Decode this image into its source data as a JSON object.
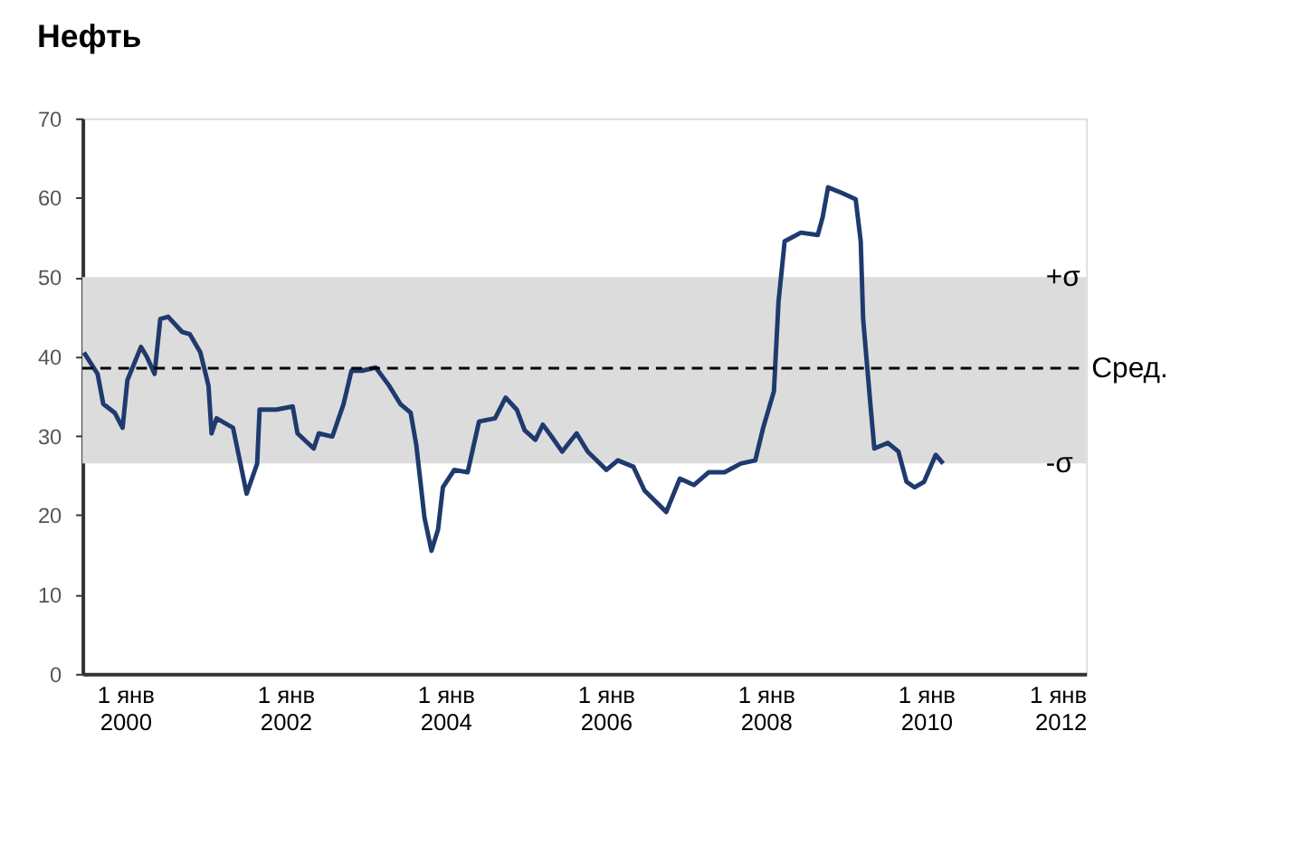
{
  "chart_data": {
    "type": "line",
    "title": "Нефть",
    "x": [
      "1999-06-27",
      "1999-08-28",
      "1999-09-23",
      "1999-11-14",
      "1999-12-20",
      "2000-01-11",
      "2000-03-13",
      "2000-04-08",
      "2000-05-14",
      "2000-06-09",
      "2000-07-15",
      "2000-09-16",
      "2000-10-22",
      "2000-12-09",
      "2001-01-15",
      "2001-01-29",
      "2001-02-21",
      "2001-05-07",
      "2001-07-08",
      "2001-08-25",
      "2001-09-05",
      "2001-11-21",
      "2002-02-03",
      "2002-02-25",
      "2002-05-10",
      "2002-06-02",
      "2002-08-03",
      "2002-09-23",
      "2002-10-29",
      "2002-12-16",
      "2003-02-17",
      "2003-04-19",
      "2003-06-09",
      "2003-07-26",
      "2003-08-21",
      "2003-09-27",
      "2003-10-29",
      "2003-11-28",
      "2003-12-20",
      "2004-02-10",
      "2004-04-11",
      "2004-06-02",
      "2004-08-14",
      "2004-10-01",
      "2004-11-21",
      "2004-12-27",
      "2005-02-14",
      "2005-03-20",
      "2005-04-29",
      "2005-06-16",
      "2005-08-21",
      "2005-10-11",
      "2006-01-04",
      "2006-02-25",
      "2006-05-07",
      "2006-06-27",
      "2006-10-04",
      "2006-12-05",
      "2007-02-07",
      "2007-04-15",
      "2007-06-27",
      "2007-09-09",
      "2007-11-14",
      "2007-12-20",
      "2008-02-07",
      "2008-02-28",
      "2008-03-27",
      "2008-06-09",
      "2008-08-25",
      "2008-09-16",
      "2008-10-11",
      "2008-12-13",
      "2009-02-14",
      "2009-03-09",
      "2009-03-20",
      "2009-04-22",
      "2009-05-10",
      "2009-07-11",
      "2009-08-28",
      "2009-10-04",
      "2009-11-10",
      "2009-12-23",
      "2010-02-14",
      "2010-03-20"
    ],
    "series": [
      {
        "color": "#1f3a6e",
        "values": [
          40.5,
          37.8,
          34,
          32.9,
          31,
          37,
          41.2,
          40,
          37.8,
          44.7,
          45,
          43.1,
          42.8,
          40.5,
          36.3,
          30.3,
          32.2,
          31,
          22.7,
          26.5,
          33.3,
          33.3,
          33.7,
          30.3,
          28.4,
          30.3,
          29.9,
          34,
          38.2,
          38.2,
          38.6,
          36.3,
          34,
          32.9,
          28.8,
          19.7,
          15.5,
          18.2,
          23.5,
          25.7,
          25.4,
          31.8,
          32.2,
          34.8,
          33.3,
          30.7,
          29.5,
          31.4,
          29.9,
          28,
          30.3,
          28,
          25.7,
          26.9,
          26.1,
          23.1,
          20.4,
          24.6,
          23.8,
          25.4,
          25.4,
          26.5,
          26.9,
          31,
          35.6,
          46.9,
          54.5,
          55.6,
          55.3,
          57.5,
          61.3,
          60.6,
          59.8,
          54.5,
          44.7,
          34,
          28.4,
          29.1,
          28,
          24.2,
          23.5,
          24.2,
          27.6,
          26.5
        ]
      }
    ],
    "xlim": [
      "1999-06-20",
      "2012-01-01"
    ],
    "xticks": [
      {
        "value": "2000-01-01",
        "label": "1 янв\n2000"
      },
      {
        "value": "2002-01-01",
        "label": "1 янв\n2002"
      },
      {
        "value": "2004-01-01",
        "label": "1 янв\n2004"
      },
      {
        "value": "2006-01-01",
        "label": "1 янв\n2006"
      },
      {
        "value": "2008-01-01",
        "label": "1 янв\n2008"
      },
      {
        "value": "2010-01-01",
        "label": "1 янв\n2010"
      },
      {
        "value": "2012-01-01",
        "label": "1 янв\n2012"
      }
    ],
    "ylim": [
      0,
      70
    ],
    "yticks": [
      0,
      10,
      20,
      30,
      40,
      50,
      60,
      70
    ],
    "ref_lines": [
      {
        "axis": "y",
        "value": 38.5,
        "label": "Сред.",
        "color": "#000000",
        "line_style": "dashed"
      }
    ],
    "bands": [
      {
        "axis": "y",
        "from": 26.5,
        "to": 50,
        "color": "#dcdcdc"
      }
    ],
    "annotations": [
      {
        "text": "+σ",
        "x": "2011-07-01",
        "y": 50
      },
      {
        "text": "-σ",
        "x": "2011-07-01",
        "y": 26.5
      }
    ],
    "grid": false,
    "line_style": "solid",
    "marker": "none"
  }
}
